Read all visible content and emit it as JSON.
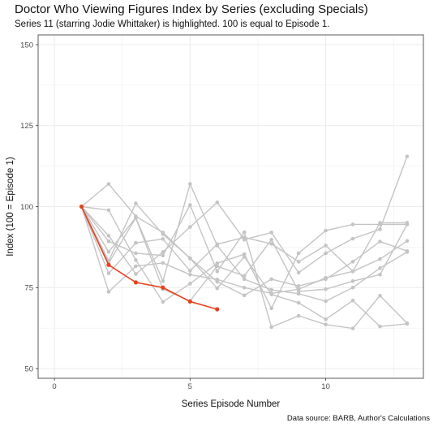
{
  "header": {
    "title": "Doctor Who Viewing Figures Index by Series (excluding Specials)",
    "subtitle": "Series 11 (starring Jodie Whittaker) is highlighted. 100 is equal to Episode 1."
  },
  "caption": "Data source: BARB, Author's Calculations",
  "colors": {
    "highlight": "#e8401c",
    "other": "#c4c4c4",
    "grid": "#ebebeb",
    "panel_border": "#333333"
  },
  "chart_data": {
    "type": "line",
    "title": "Doctor Who Viewing Figures Index by Series (excluding Specials)",
    "subtitle": "Series 11 (starring Jodie Whittaker) is highlighted. 100 is equal to Episode 1.",
    "xlabel": "Series Episode Number",
    "ylabel": "Index (100 = Episode 1)",
    "xlim": [
      -0.6,
      13.6
    ],
    "ylim": [
      47,
      153
    ],
    "x_ticks": [
      0,
      5,
      10
    ],
    "x_tick_labels": [
      "0",
      "5",
      "10"
    ],
    "y_ticks": [
      50,
      75,
      100,
      125,
      150
    ],
    "y_tick_labels": [
      "50",
      "75",
      "100",
      "125",
      "150"
    ],
    "grid": true,
    "legend": "none",
    "highlighted_series": {
      "x": [
        1,
        2,
        3,
        4,
        5,
        6
      ],
      "values": [
        100,
        82.0,
        76.6,
        75.0,
        70.7,
        68.3
      ]
    },
    "other_series": [
      {
        "x": [
          1,
          2,
          3,
          4,
          5,
          6,
          7,
          8,
          9,
          10,
          11,
          12,
          13
        ],
        "values": [
          100,
          73.7,
          81.6,
          82.6,
          79.0,
          77.5,
          75.0,
          73.2,
          74.5,
          78.0,
          80.0,
          95.0,
          95.0
        ]
      },
      {
        "x": [
          1,
          2,
          3,
          4,
          5,
          6,
          7,
          8,
          9,
          10,
          11,
          12,
          13
        ],
        "values": [
          100,
          107.0,
          97.0,
          92.0,
          84.0,
          74.8,
          84.5,
          72.9,
          70.3,
          65.2,
          71.0,
          63.0,
          63.8
        ]
      },
      {
        "x": [
          1,
          2,
          3,
          4,
          5,
          6,
          7,
          8,
          9,
          10,
          11,
          12,
          13
        ],
        "values": [
          100,
          98.9,
          83.5,
          70.6,
          76.2,
          82.5,
          85.3,
          68.6,
          85.6,
          92.6,
          94.5,
          94.5,
          94.5
        ]
      },
      {
        "x": [
          1,
          2,
          3,
          4,
          5,
          6,
          7,
          8,
          9,
          10,
          11,
          12,
          13
        ],
        "values": [
          100,
          91.0,
          79.2,
          86.0,
          93.7,
          101.3,
          89.8,
          92.0,
          79.6,
          85.6,
          90.1,
          93.0,
          115.5
        ]
      },
      {
        "x": [
          1,
          2,
          3,
          4,
          5,
          6,
          7,
          8,
          9,
          10,
          11,
          12,
          13
        ],
        "values": [
          100,
          83.3,
          101.0,
          91.5,
          84.1,
          76.8,
          72.6,
          77.6,
          75.5,
          77.6,
          83.0,
          89.2,
          86.3
        ]
      },
      {
        "x": [
          1,
          2,
          3,
          4,
          5,
          6,
          7,
          8,
          9,
          10,
          11,
          12,
          13
        ],
        "values": [
          100,
          79.4,
          88.8,
          90.0,
          80.2,
          88.4,
          90.5,
          88.5,
          83.0,
          88.0,
          80.0,
          83.8,
          89.4
        ]
      },
      {
        "x": [
          1,
          2,
          3,
          4,
          5,
          6,
          7,
          8,
          9,
          10,
          11,
          12,
          13
        ],
        "values": [
          100,
          86.0,
          96.6,
          77.0,
          107.0,
          88.0,
          77.6,
          74.3,
          73.1,
          70.8,
          75.0,
          81.0,
          86.0
        ]
      },
      {
        "x": [
          1,
          2,
          3,
          4,
          5,
          6,
          7,
          8,
          9,
          10,
          11,
          12,
          13
        ],
        "values": [
          100,
          89.3,
          85.6,
          84.9,
          100.5,
          80.0,
          92.1,
          62.8,
          66.3,
          63.6,
          62.4,
          72.5,
          64.0
        ]
      },
      {
        "x": [
          1,
          2,
          3,
          4,
          5,
          6,
          7,
          8,
          9,
          10,
          11,
          12,
          13
        ],
        "values": [
          100,
          82.6,
          96.5,
          74.5,
          70.9,
          81.6,
          78.6,
          89.8,
          73.8,
          74.5,
          77.0,
          79.0,
          94.5
        ]
      }
    ]
  }
}
